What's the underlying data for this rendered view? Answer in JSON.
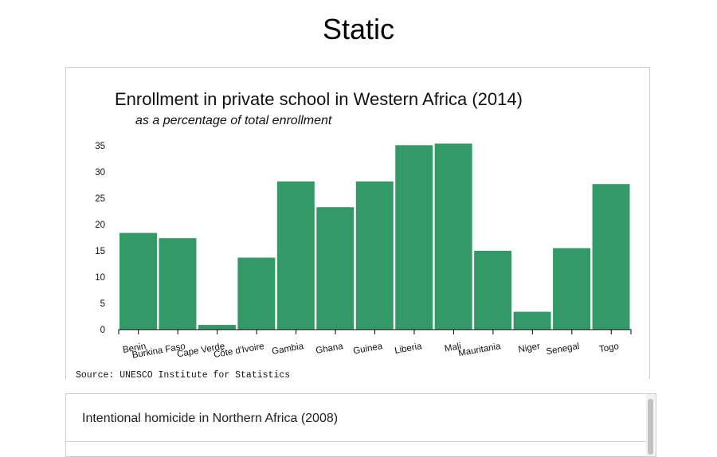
{
  "page": {
    "heading": "Static"
  },
  "chart_data": {
    "type": "bar",
    "title": "Enrollment in private school in Western Africa (2014)",
    "subtitle": "as a percentage of total enrollment",
    "source": "Source: UNESCO Institute for Statistics",
    "categories": [
      "Benin",
      "Burkina Faso",
      "Cape Verde",
      "Côte d'Ivoire",
      "Gambia",
      "Ghana",
      "Guinea",
      "Liberia",
      "Mali",
      "Mauritania",
      "Niger",
      "Senegal",
      "Togo"
    ],
    "values": [
      18.4,
      17.4,
      0.9,
      13.7,
      28.2,
      23.3,
      28.2,
      35.1,
      35.4,
      15.0,
      3.4,
      15.5,
      27.7
    ],
    "ylim": [
      0,
      35
    ],
    "yticks": [
      0,
      5,
      10,
      15,
      20,
      25,
      30,
      35
    ],
    "bar_color": "#339966",
    "grid": false,
    "xlabel": "",
    "ylabel": ""
  },
  "list": {
    "items": [
      "Intentional homicide in Northern Africa (2008)"
    ]
  }
}
